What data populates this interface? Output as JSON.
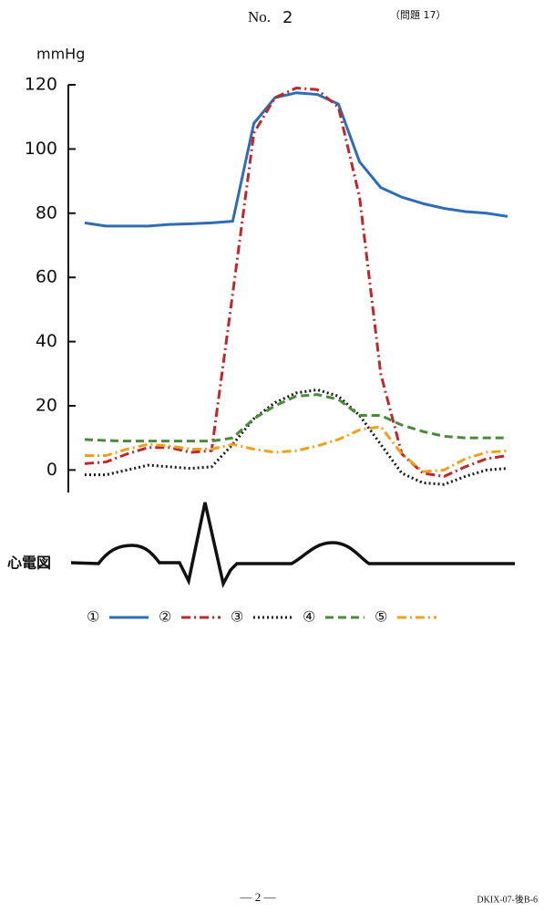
{
  "header": {
    "no": "No.",
    "number": "2",
    "question": "（問題 17）"
  },
  "chart_data": {
    "type": "line",
    "y_label": "mmHg",
    "ecg_label": "心電図",
    "x": [
      0,
      5,
      10,
      15,
      20,
      25,
      30,
      35,
      40,
      45,
      50,
      55,
      60,
      65,
      70,
      75,
      80,
      85,
      90,
      95,
      100
    ],
    "xlim": [
      0,
      100
    ],
    "ylim": [
      -7,
      120
    ],
    "yticks": [
      0,
      20,
      40,
      60,
      80,
      100,
      120
    ],
    "series": [
      {
        "name": "①",
        "color": "#2e6db4",
        "dash": "solid",
        "values": [
          77,
          76,
          76,
          76,
          76.5,
          76.7,
          77,
          77.5,
          108,
          116,
          117.5,
          117,
          114,
          96,
          88,
          85,
          83,
          81.5,
          80.5,
          80,
          79
        ]
      },
      {
        "name": "②",
        "color": "#c0272d",
        "dash": "dashdot",
        "values": [
          2,
          2.5,
          5,
          7,
          7,
          5.5,
          6,
          55,
          105,
          116,
          119,
          118.5,
          113,
          85,
          30,
          5,
          -1,
          -2,
          1,
          3.5,
          4.5
        ]
      },
      {
        "name": "③",
        "color": "#1a1a1a",
        "dash": "dotted",
        "values": [
          -1.5,
          -1.5,
          0,
          1.5,
          1,
          0.5,
          1,
          8,
          16,
          21,
          24,
          25,
          23,
          17,
          8,
          -1,
          -4,
          -4.5,
          -2,
          0,
          0.5
        ]
      },
      {
        "name": "④",
        "color": "#4a8a3a",
        "dash": "dashed",
        "values": [
          9.5,
          9.2,
          9,
          9,
          9,
          9,
          9,
          10,
          16,
          20,
          23,
          23.5,
          22,
          17,
          17,
          14,
          12,
          10.5,
          10,
          10,
          10
        ]
      },
      {
        "name": "⑤",
        "color": "#f0a020",
        "dash": "dashdot",
        "values": [
          4.5,
          4.5,
          6.5,
          8,
          7.5,
          6.5,
          6.5,
          8,
          6.5,
          5.5,
          6,
          7.5,
          9.5,
          12.5,
          13.5,
          5,
          -0.5,
          0,
          3.5,
          5.5,
          6
        ]
      }
    ]
  },
  "footer": {
    "page": "— 2 —",
    "code": "DKIX-07-後B-6"
  }
}
